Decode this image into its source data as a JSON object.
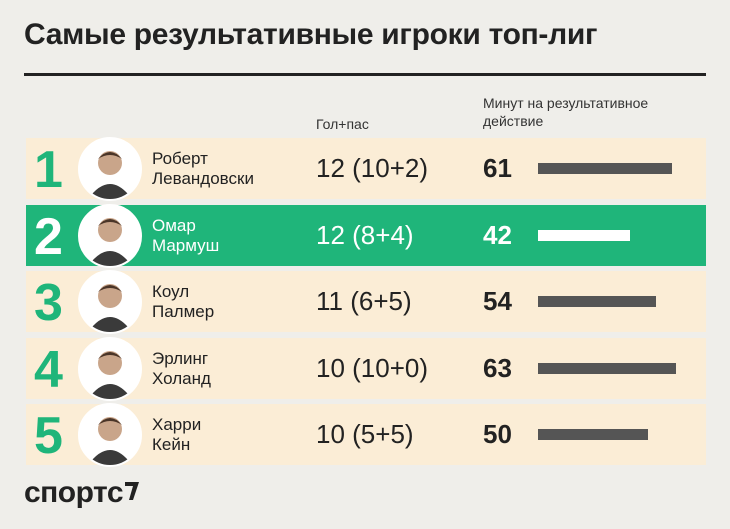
{
  "header": {
    "title": "Самые результативные игроки топ-лиг"
  },
  "table": {
    "columns": [
      "Гол+пас",
      "Минут на результативное действие"
    ],
    "rows": [
      {
        "rank": 1,
        "first": "Роберт",
        "last": "Левандовски",
        "stat": "12 (10+2)",
        "minutes": 61,
        "highlighted": false
      },
      {
        "rank": 2,
        "first": "Омар",
        "last": "Мармуш",
        "stat": "12 (8+4)",
        "minutes": 42,
        "highlighted": true
      },
      {
        "rank": 3,
        "first": "Коул",
        "last": "Палмер",
        "stat": "11 (6+5)",
        "minutes": 54,
        "highlighted": false
      },
      {
        "rank": 4,
        "first": "Эрлинг",
        "last": "Холанд",
        "stat": "10 (10+0)",
        "minutes": 63,
        "highlighted": false
      },
      {
        "rank": 5,
        "first": "Харри",
        "last": "Кейн",
        "stat": "10 (5+5)",
        "minutes": 50,
        "highlighted": false
      }
    ]
  },
  "footer": {
    "logo": "спортс"
  }
}
